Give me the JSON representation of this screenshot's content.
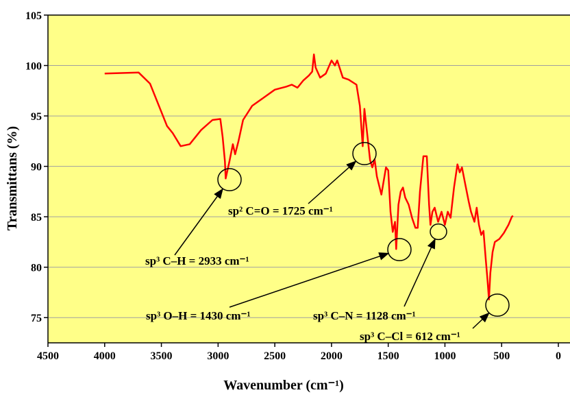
{
  "chart_data": {
    "type": "line",
    "x_label": "Wavenumber (cm⁻¹)",
    "y_label": "Transmittans (%)",
    "xlim": [
      4500,
      0
    ],
    "xticks": [
      4500,
      4000,
      3500,
      3000,
      2500,
      2000,
      1500,
      1000,
      500,
      0
    ],
    "ylim": [
      72.5,
      105
    ],
    "yticks": [
      75,
      80,
      85,
      90,
      95,
      100,
      105
    ],
    "grid": true,
    "color": "#ff0000",
    "x": [
      4000,
      3700,
      3600,
      3450,
      3400,
      3330,
      3250,
      3150,
      3050,
      2980,
      2960,
      2940,
      2933,
      2900,
      2870,
      2850,
      2820,
      2780,
      2700,
      2600,
      2500,
      2400,
      2350,
      2300,
      2250,
      2200,
      2170,
      2155,
      2140,
      2100,
      2050,
      2000,
      1970,
      1950,
      1900,
      1850,
      1780,
      1750,
      1725,
      1710,
      1690,
      1660,
      1640,
      1620,
      1600,
      1560,
      1520,
      1500,
      1480,
      1460,
      1440,
      1430,
      1410,
      1390,
      1370,
      1350,
      1320,
      1290,
      1260,
      1240,
      1220,
      1190,
      1160,
      1140,
      1128,
      1110,
      1090,
      1060,
      1030,
      1000,
      975,
      950,
      920,
      890,
      870,
      850,
      820,
      790,
      770,
      740,
      720,
      700,
      680,
      660,
      640,
      625,
      612,
      600,
      580,
      560,
      520,
      480,
      440,
      410,
      400
    ],
    "values": [
      99.2,
      99.3,
      98.2,
      94.0,
      93.3,
      92.0,
      92.2,
      93.6,
      94.6,
      94.7,
      92.9,
      90.5,
      88.8,
      90.5,
      92.2,
      91.2,
      92.5,
      94.6,
      96.0,
      96.8,
      97.6,
      97.9,
      98.1,
      97.8,
      98.5,
      99.0,
      99.4,
      101.1,
      99.8,
      98.8,
      99.2,
      100.5,
      100.0,
      100.5,
      98.8,
      98.6,
      98.1,
      96.0,
      92.0,
      95.7,
      93.7,
      90.6,
      89.9,
      90.7,
      89.0,
      87.2,
      89.9,
      89.6,
      85.5,
      83.5,
      84.5,
      81.8,
      86.2,
      87.5,
      87.9,
      86.9,
      86.2,
      84.9,
      83.9,
      83.9,
      87.5,
      91.0,
      91.0,
      86.2,
      84.2,
      85.5,
      85.9,
      84.5,
      85.5,
      84.2,
      85.5,
      84.9,
      87.9,
      90.2,
      89.4,
      89.9,
      88.2,
      86.5,
      85.5,
      84.5,
      85.9,
      84.2,
      83.2,
      83.6,
      80.8,
      78.8,
      76.8,
      79.4,
      81.5,
      82.5,
      82.8,
      83.4,
      84.2,
      85.0,
      85.1
    ],
    "annotations": [
      "sp³ C–H = 2933 cm⁻¹",
      "sp² C=O = 1725 cm⁻¹",
      "sp³ O–H = 1430 cm⁻¹",
      "sp³ C–N = 1128 cm⁻¹",
      "sp³ C–Cl = 612 cm⁻¹"
    ]
  }
}
